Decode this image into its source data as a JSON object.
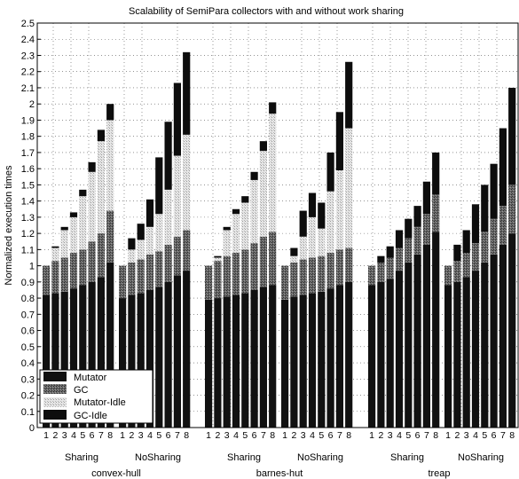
{
  "chart_data": {
    "type": "bar",
    "stacked": true,
    "title": "Scalability of SemiPara collectors with and without work sharing",
    "ylabel": "Normalized execution times",
    "xlabel": "",
    "ylim": [
      0,
      2.5
    ],
    "ytick_step": 0.1,
    "grid": true,
    "legend_position": "bottom-left",
    "legend": [
      "Mutator",
      "GC",
      "Mutator-Idle",
      "GC-Idle"
    ],
    "colors": {
      "Mutator": "#111111",
      "GC": "#555555",
      "Mutator-Idle": "#c4c4c4",
      "GC-Idle": "#0d0d0d"
    },
    "groups": [
      {
        "benchmark": "convex-hull",
        "mode": "Sharing",
        "threads": [
          "1",
          "2",
          "3",
          "4",
          "5",
          "6",
          "7",
          "8"
        ],
        "series": [
          {
            "name": "Mutator",
            "values": [
              0.82,
              0.83,
              0.84,
              0.86,
              0.88,
              0.9,
              0.93,
              1.02
            ]
          },
          {
            "name": "GC",
            "values": [
              0.18,
              0.2,
              0.21,
              0.22,
              0.22,
              0.25,
              0.27,
              0.32
            ]
          },
          {
            "name": "Mutator-Idle",
            "values": [
              0.0,
              0.08,
              0.17,
              0.22,
              0.33,
              0.43,
              0.57,
              0.56
            ]
          },
          {
            "name": "GC-Idle",
            "values": [
              0.0,
              0.01,
              0.02,
              0.03,
              0.04,
              0.06,
              0.07,
              0.1
            ]
          }
        ]
      },
      {
        "benchmark": "convex-hull",
        "mode": "NoSharing",
        "threads": [
          "1",
          "2",
          "3",
          "4",
          "5",
          "6",
          "7",
          "8"
        ],
        "series": [
          {
            "name": "Mutator",
            "values": [
              0.8,
              0.82,
              0.83,
              0.85,
              0.87,
              0.9,
              0.94,
              0.97
            ]
          },
          {
            "name": "GC",
            "values": [
              0.2,
              0.2,
              0.21,
              0.22,
              0.22,
              0.23,
              0.24,
              0.25
            ]
          },
          {
            "name": "Mutator-Idle",
            "values": [
              0.0,
              0.08,
              0.12,
              0.17,
              0.23,
              0.34,
              0.5,
              0.59
            ]
          },
          {
            "name": "GC-Idle",
            "values": [
              0.0,
              0.07,
              0.1,
              0.17,
              0.35,
              0.42,
              0.45,
              0.51
            ]
          }
        ]
      },
      {
        "benchmark": "barnes-hut",
        "mode": "Sharing",
        "threads": [
          "1",
          "2",
          "3",
          "4",
          "5",
          "6",
          "7",
          "8"
        ],
        "series": [
          {
            "name": "Mutator",
            "values": [
              0.79,
              0.8,
              0.81,
              0.82,
              0.83,
              0.85,
              0.87,
              0.88
            ]
          },
          {
            "name": "GC",
            "values": [
              0.21,
              0.23,
              0.25,
              0.26,
              0.27,
              0.29,
              0.31,
              0.33
            ]
          },
          {
            "name": "Mutator-Idle",
            "values": [
              0.0,
              0.02,
              0.16,
              0.24,
              0.29,
              0.39,
              0.53,
              0.73
            ]
          },
          {
            "name": "GC-Idle",
            "values": [
              0.0,
              0.01,
              0.02,
              0.03,
              0.04,
              0.05,
              0.06,
              0.07
            ]
          }
        ]
      },
      {
        "benchmark": "barnes-hut",
        "mode": "NoSharing",
        "threads": [
          "1",
          "2",
          "3",
          "4",
          "5",
          "6",
          "7",
          "8"
        ],
        "series": [
          {
            "name": "Mutator",
            "values": [
              0.79,
              0.81,
              0.82,
              0.83,
              0.84,
              0.86,
              0.88,
              0.9
            ]
          },
          {
            "name": "GC",
            "values": [
              0.21,
              0.21,
              0.22,
              0.22,
              0.22,
              0.22,
              0.22,
              0.21
            ]
          },
          {
            "name": "Mutator-Idle",
            "values": [
              0.0,
              0.04,
              0.14,
              0.25,
              0.17,
              0.38,
              0.49,
              0.74
            ]
          },
          {
            "name": "GC-Idle",
            "values": [
              0.0,
              0.05,
              0.16,
              0.15,
              0.16,
              0.24,
              0.36,
              0.41
            ]
          }
        ]
      },
      {
        "benchmark": "treap",
        "mode": "Sharing",
        "threads": [
          "1",
          "2",
          "3",
          "4",
          "5",
          "6",
          "7",
          "8"
        ],
        "series": [
          {
            "name": "Mutator",
            "values": [
              0.88,
              0.9,
              0.92,
              0.97,
              1.02,
              1.07,
              1.13,
              1.21
            ]
          },
          {
            "name": "GC",
            "values": [
              0.12,
              0.12,
              0.13,
              0.14,
              0.15,
              0.17,
              0.19,
              0.23
            ]
          },
          {
            "name": "Mutator-Idle",
            "values": [
              0.0,
              0.0,
              0.0,
              0.0,
              0.0,
              0.0,
              0.0,
              0.0
            ]
          },
          {
            "name": "GC-Idle",
            "values": [
              0.0,
              0.04,
              0.07,
              0.11,
              0.12,
              0.13,
              0.2,
              0.26
            ]
          }
        ]
      },
      {
        "benchmark": "treap",
        "mode": "NoSharing",
        "threads": [
          "1",
          "2",
          "3",
          "4",
          "5",
          "6",
          "7",
          "8"
        ],
        "series": [
          {
            "name": "Mutator",
            "values": [
              0.88,
              0.9,
              0.93,
              0.97,
              1.02,
              1.07,
              1.13,
              1.2
            ]
          },
          {
            "name": "GC",
            "values": [
              0.12,
              0.13,
              0.15,
              0.17,
              0.19,
              0.22,
              0.24,
              0.3
            ]
          },
          {
            "name": "Mutator-Idle",
            "values": [
              0.0,
              0.0,
              0.0,
              0.0,
              0.0,
              0.0,
              0.0,
              0.0
            ]
          },
          {
            "name": "GC-Idle",
            "values": [
              0.0,
              0.1,
              0.14,
              0.24,
              0.29,
              0.34,
              0.48,
              0.6
            ]
          }
        ]
      }
    ],
    "group_labels": [
      "Sharing",
      "NoSharing",
      "Sharing",
      "NoSharing",
      "Sharing",
      "NoSharing"
    ],
    "benchmark_labels": [
      "convex-hull",
      "barnes-hut",
      "treap"
    ]
  }
}
